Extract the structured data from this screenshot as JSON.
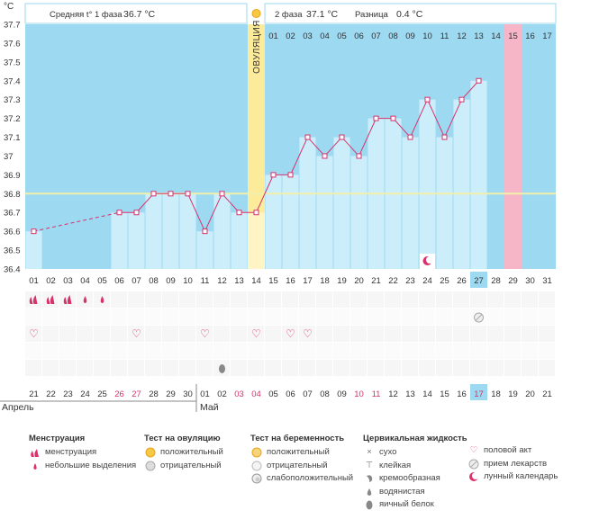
{
  "colors": {
    "sky": "#9ED9F2",
    "bar": "#CCEEFB",
    "line": "#D6336C",
    "ovulation": "#FBEB9A",
    "ovulation_light": "#FFF4C4",
    "period_day": "#F7B6C8",
    "today": "#9ED9F2",
    "coverline": "#F2EFAA",
    "grid": "#E3E3E3"
  },
  "header": {
    "phase1_label": "Средняя t° 1 фаза",
    "phase1_value": "36.7 °С",
    "phase2_label": "2 фаза",
    "phase2_value": "37.1 °С",
    "diff_label": "Разница",
    "diff_value": "0.4 °С",
    "ovulation_text": "ОВУЛЯЦИЯ",
    "unit": "°С"
  },
  "chart_data": {
    "type": "line",
    "title": "",
    "ylabel": "°С",
    "ylim": [
      36.4,
      37.7
    ],
    "y_ticks": [
      "37.7",
      "37.6",
      "37.5",
      "37.4",
      "37.3",
      "37.2",
      "37.1",
      "37",
      "36.9",
      "36.8",
      "36.7",
      "36.6",
      "36.5",
      "36.4"
    ],
    "coverline": 36.8,
    "cycle_days": [
      "01",
      "02",
      "03",
      "04",
      "05",
      "06",
      "07",
      "08",
      "09",
      "10",
      "11",
      "12",
      "13",
      "14",
      "15",
      "16",
      "17",
      "18",
      "19",
      "20",
      "21",
      "22",
      "23",
      "24",
      "25",
      "26",
      "27",
      "28",
      "29",
      "30",
      "31"
    ],
    "phase2_days_header": [
      "01",
      "02",
      "03",
      "04",
      "05",
      "06",
      "07",
      "08",
      "09",
      "10",
      "11",
      "12",
      "13",
      "14",
      "15",
      "16",
      "17"
    ],
    "temperatures": [
      36.6,
      null,
      null,
      null,
      null,
      36.7,
      36.7,
      36.8,
      36.8,
      36.8,
      36.6,
      36.8,
      36.7,
      36.7,
      36.9,
      36.9,
      37.1,
      37.0,
      37.1,
      37.0,
      37.2,
      37.2,
      37.1,
      37.3,
      37.1,
      37.3,
      37.4,
      null,
      null,
      null,
      null
    ],
    "calendar_dates": [
      "21",
      "22",
      "23",
      "24",
      "25",
      "26",
      "27",
      "28",
      "29",
      "30",
      "01",
      "02",
      "03",
      "04",
      "05",
      "06",
      "07",
      "08",
      "09",
      "10",
      "11",
      "12",
      "13",
      "14",
      "15",
      "16",
      "17",
      "18",
      "19",
      "20",
      "21"
    ],
    "weekend_dates_idx": [
      5,
      6,
      12,
      13,
      19,
      20,
      26
    ],
    "ovulation_day_idx": 13,
    "today_idx": 26,
    "period_day_idx": 28,
    "months": [
      "Апрель",
      "Май"
    ],
    "menstruation_heavy_idx": [
      0,
      1,
      2
    ],
    "menstruation_light_idx": [
      3,
      4
    ],
    "intercourse_idx": [
      0,
      6,
      10,
      13,
      15,
      16
    ],
    "egg_white_idx": [
      11
    ],
    "medication_idx": [
      26
    ],
    "lunar_idx": [
      23
    ]
  },
  "legend": {
    "menstruation": {
      "title": "Менструация",
      "items": [
        "менструация",
        "небольшие выделения"
      ]
    },
    "ovulation_test": {
      "title": "Тест на овуляцию",
      "items": [
        "положительный",
        "отрицательный"
      ]
    },
    "pregnancy_test": {
      "title": "Тест на беременность",
      "items": [
        "положительный",
        "отрицательный",
        "слабоположительный"
      ]
    },
    "cervical": {
      "title": "Цервикальная жидкость",
      "items": [
        "сухо",
        "клейкая",
        "кремообразная",
        "водянистая",
        "яичный белок"
      ]
    },
    "other": {
      "items": [
        "половой акт",
        "прием лекарств",
        "лунный календарь"
      ]
    }
  }
}
